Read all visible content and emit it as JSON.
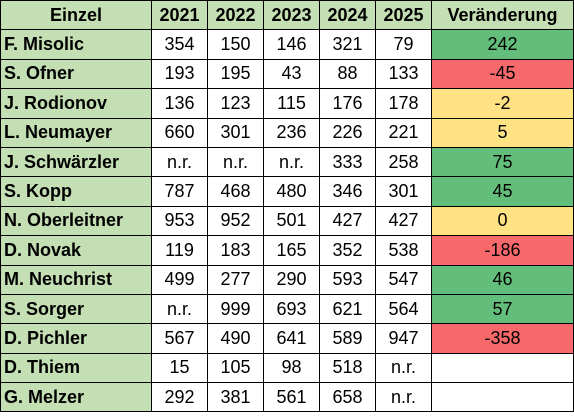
{
  "colors": {
    "header_bg": "#c5dfb4",
    "green": "#63be7b",
    "red": "#f8696b",
    "yellow": "#ffe284",
    "white": "#ffffff"
  },
  "headers": [
    "Einzel",
    "2021",
    "2022",
    "2023",
    "2024",
    "2025",
    "Veränderung"
  ],
  "rows": [
    {
      "name": "F. Misolic",
      "values": [
        "354",
        "150",
        "146",
        "321",
        "79"
      ],
      "change": "242",
      "color": "green"
    },
    {
      "name": "S. Ofner",
      "values": [
        "193",
        "195",
        "43",
        "88",
        "133"
      ],
      "change": "-45",
      "color": "red"
    },
    {
      "name": "J. Rodionov",
      "values": [
        "136",
        "123",
        "115",
        "176",
        "178"
      ],
      "change": "-2",
      "color": "yellow"
    },
    {
      "name": "L. Neumayer",
      "values": [
        "660",
        "301",
        "236",
        "226",
        "221"
      ],
      "change": "5",
      "color": "yellow"
    },
    {
      "name": "J. Schwärzler",
      "values": [
        "n.r.",
        "n.r.",
        "n.r.",
        "333",
        "258"
      ],
      "change": "75",
      "color": "green"
    },
    {
      "name": "S. Kopp",
      "values": [
        "787",
        "468",
        "480",
        "346",
        "301"
      ],
      "change": "45",
      "color": "green"
    },
    {
      "name": "N. Oberleitner",
      "values": [
        "953",
        "952",
        "501",
        "427",
        "427"
      ],
      "change": "0",
      "color": "yellow"
    },
    {
      "name": "D. Novak",
      "values": [
        "119",
        "183",
        "165",
        "352",
        "538"
      ],
      "change": "-186",
      "color": "red"
    },
    {
      "name": "M. Neuchrist",
      "values": [
        "499",
        "277",
        "290",
        "593",
        "547"
      ],
      "change": "46",
      "color": "green"
    },
    {
      "name": "S. Sorger",
      "values": [
        "n.r.",
        "999",
        "693",
        "621",
        "564"
      ],
      "change": "57",
      "color": "green"
    },
    {
      "name": "D. Pichler",
      "values": [
        "567",
        "490",
        "641",
        "589",
        "947"
      ],
      "change": "-358",
      "color": "red"
    },
    {
      "name": "D. Thiem",
      "values": [
        "15",
        "105",
        "98",
        "518",
        "n.r."
      ],
      "change": "",
      "color": "white"
    },
    {
      "name": "G. Melzer",
      "values": [
        "292",
        "381",
        "561",
        "658",
        "n.r."
      ],
      "change": "",
      "color": "white"
    }
  ]
}
